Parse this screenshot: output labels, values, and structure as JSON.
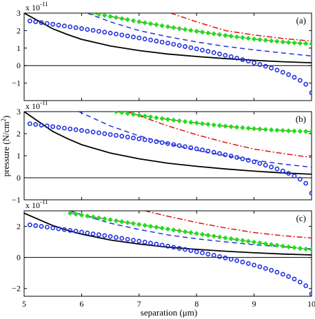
{
  "figure": {
    "xlabel": "separation (μm)",
    "ylabel": "pressure (N/cm",
    "ylabel_sup": "2",
    "ylabel_close": ")"
  },
  "colors": {
    "solid": "#000000",
    "dashed": "#1f2fe0",
    "dashdot": "#e01010",
    "diamond": "#22dd22",
    "circle": "#1f2fe0",
    "zero_line": "#000000"
  },
  "chart_data": [
    {
      "type": "line",
      "panel_label": "(a)",
      "exponent_text": "x 10",
      "exponent_power": "-11",
      "xlim": [
        5,
        10
      ],
      "ylim": [
        -2,
        3
      ],
      "xticks": [
        5,
        6,
        7,
        8,
        9,
        10
      ],
      "yticks": [
        3,
        2,
        1,
        0,
        -1
      ],
      "series": [
        {
          "style": "solid",
          "x": [
            5.0,
            5.25,
            5.5,
            5.75,
            6.0,
            6.5,
            7.0,
            7.5,
            8.0,
            8.5,
            9.0,
            9.5,
            10.0
          ],
          "y": [
            3.0,
            2.55,
            2.1,
            1.78,
            1.5,
            1.12,
            0.86,
            0.66,
            0.52,
            0.4,
            0.3,
            0.22,
            0.16
          ]
        },
        {
          "style": "dashed",
          "x": [
            6.1,
            6.5,
            7.0,
            7.5,
            8.0,
            8.5,
            9.0,
            9.5,
            10.0
          ],
          "y": [
            3.0,
            2.5,
            2.0,
            1.65,
            1.35,
            1.1,
            0.9,
            0.72,
            0.55
          ]
        },
        {
          "style": "dashdot",
          "x": [
            7.55,
            8.0,
            8.5,
            9.0,
            9.5,
            10.0
          ],
          "y": [
            3.0,
            2.5,
            2.0,
            1.75,
            1.55,
            1.4
          ]
        },
        {
          "style": "diamond",
          "x_start": 6.2,
          "x_end": 10.0,
          "count": 39,
          "y_start": 3.0,
          "y_end": 1.25,
          "shape": 1.4
        },
        {
          "style": "circle",
          "x_start": 5.1,
          "x_end": 10.0,
          "count": 50,
          "y_start": 2.55,
          "y_end": -1.55,
          "shape": 0.55
        }
      ]
    },
    {
      "type": "line",
      "panel_label": "(b)",
      "exponent_text": "x 10",
      "exponent_power": "-11",
      "xlim": [
        5,
        10
      ],
      "ylim": [
        -1,
        3
      ],
      "xticks": [
        5,
        6,
        7,
        8,
        9,
        10
      ],
      "yticks": [
        3,
        2,
        1,
        0,
        -1
      ],
      "series": [
        {
          "style": "solid",
          "x": [
            5.0,
            5.25,
            5.5,
            5.75,
            6.0,
            6.5,
            7.0,
            7.5,
            8.0,
            8.5,
            9.0,
            9.5,
            10.0
          ],
          "y": [
            3.0,
            2.55,
            2.1,
            1.78,
            1.5,
            1.12,
            0.86,
            0.66,
            0.52,
            0.4,
            0.3,
            0.22,
            0.16
          ]
        },
        {
          "style": "dashed",
          "x": [
            5.95,
            6.5,
            7.0,
            7.5,
            8.0,
            8.5,
            9.0,
            9.5,
            10.0
          ],
          "y": [
            3.0,
            2.35,
            1.9,
            1.55,
            1.25,
            1.0,
            0.8,
            0.62,
            0.48
          ]
        },
        {
          "style": "dashdot",
          "x": [
            6.8,
            7.5,
            8.0,
            8.5,
            9.0,
            9.5,
            10.0
          ],
          "y": [
            3.0,
            2.35,
            1.95,
            1.6,
            1.3,
            1.1,
            0.92
          ]
        },
        {
          "style": "diamond",
          "x_start": 6.6,
          "x_end": 10.0,
          "count": 35,
          "y_start": 3.0,
          "y_end": 2.1,
          "shape": 1.6
        },
        {
          "style": "circle",
          "x_start": 5.1,
          "x_end": 10.0,
          "count": 50,
          "y_start": 2.45,
          "y_end": -0.7,
          "shape": 0.5
        }
      ]
    },
    {
      "type": "line",
      "panel_label": "(c)",
      "exponent_text": "x 10",
      "exponent_power": "-11",
      "xlim": [
        5,
        10
      ],
      "ylim": [
        -2.5,
        3
      ],
      "xticks": [
        5,
        6,
        7,
        8,
        9,
        10
      ],
      "yticks": [
        2,
        0,
        -2
      ],
      "xticklabels": [
        "5",
        "6",
        "7",
        "8",
        "9",
        "10"
      ],
      "series": [
        {
          "style": "solid",
          "x": [
            5.0,
            5.25,
            5.5,
            5.75,
            6.0,
            6.5,
            7.0,
            7.5,
            8.0,
            8.5,
            9.0,
            9.5,
            10.0
          ],
          "y": [
            2.85,
            2.45,
            2.05,
            1.75,
            1.5,
            1.12,
            0.86,
            0.66,
            0.52,
            0.4,
            0.3,
            0.22,
            0.16
          ]
        },
        {
          "style": "dashed",
          "x": [
            5.8,
            6.0,
            6.5,
            7.0,
            7.5,
            8.0,
            8.5,
            9.0,
            9.5,
            10.0
          ],
          "y": [
            3.0,
            2.75,
            2.2,
            1.8,
            1.45,
            1.2,
            1.0,
            0.82,
            0.68,
            0.55
          ]
        },
        {
          "style": "dashdot",
          "x": [
            7.1,
            7.5,
            8.0,
            8.5,
            9.0,
            9.5,
            10.0
          ],
          "y": [
            3.0,
            2.65,
            2.25,
            1.9,
            1.6,
            1.4,
            1.25
          ]
        },
        {
          "style": "diamond",
          "x_start": 5.8,
          "x_end": 10.0,
          "count": 43,
          "y_start": 2.85,
          "y_end": 0.5,
          "shape": 1.1
        },
        {
          "style": "circle",
          "x_start": 5.1,
          "x_end": 10.0,
          "count": 50,
          "y_start": 2.1,
          "y_end": -2.35,
          "shape": 0.55
        }
      ]
    }
  ]
}
